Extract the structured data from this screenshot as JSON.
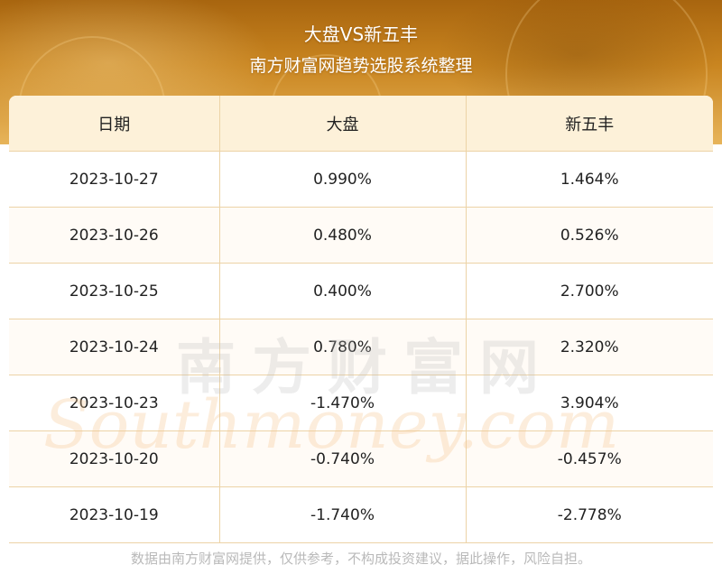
{
  "header": {
    "title": "大盘VS新五丰",
    "subtitle": "南方财富网趋势选股系统整理"
  },
  "table": {
    "columns": [
      "日期",
      "大盘",
      "新五丰"
    ],
    "rows": [
      [
        "2023-10-27",
        "0.990%",
        "1.464%"
      ],
      [
        "2023-10-26",
        "0.480%",
        "0.526%"
      ],
      [
        "2023-10-25",
        "0.400%",
        "2.700%"
      ],
      [
        "2023-10-24",
        "0.780%",
        "2.320%"
      ],
      [
        "2023-10-23",
        "-1.470%",
        "3.904%"
      ],
      [
        "2023-10-20",
        "-0.740%",
        "-0.457%"
      ],
      [
        "2023-10-19",
        "-1.740%",
        "-2.778%"
      ]
    ]
  },
  "watermark": {
    "cn": "南方财富网",
    "en": "Southmoney.com"
  },
  "footer": {
    "note": "数据由南方财富网提供，仅供参考，不构成投资建议，据此操作，风险自担。"
  },
  "colors": {
    "banner": "#c98520",
    "header_row": "#fdf1d9",
    "grid_line": "#ecd3a6",
    "footer_text": "#b9b9b9"
  }
}
